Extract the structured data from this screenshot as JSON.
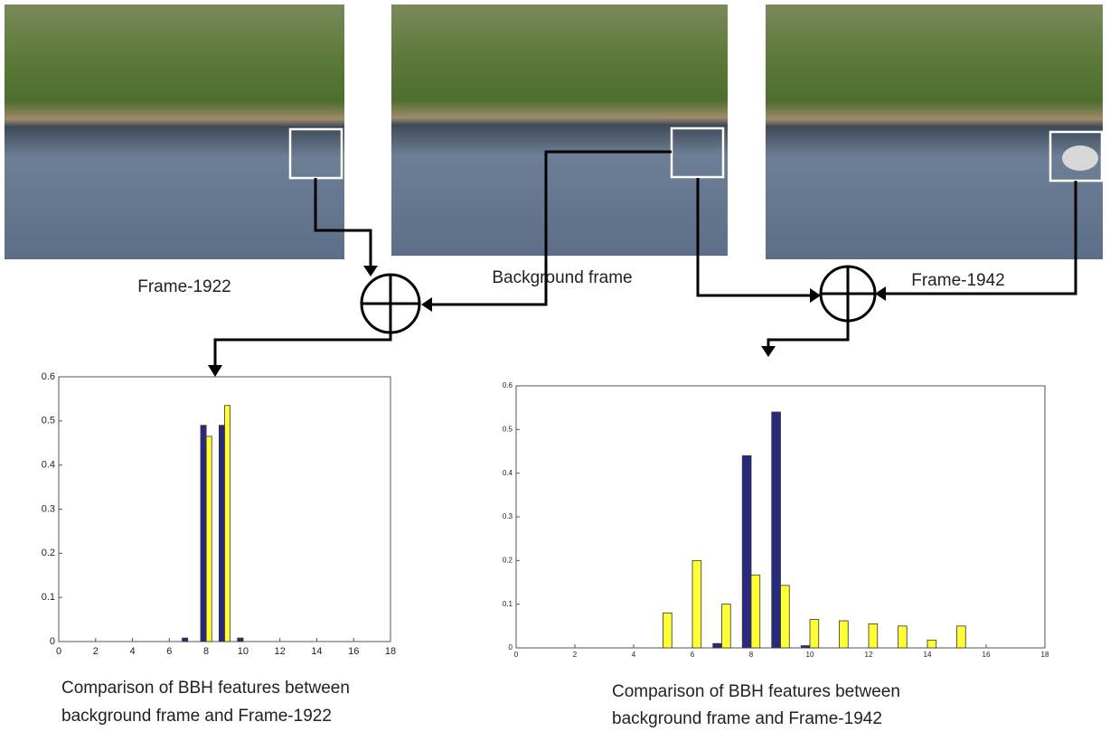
{
  "figure": {
    "frame_labels": [
      "Frame-1922",
      "Background frame",
      "Frame-1942"
    ]
  },
  "chart_data": [
    {
      "type": "bar",
      "caption": [
        "Comparison of BBH features between",
        "background frame and Frame-1922"
      ],
      "x": [
        7,
        8,
        9,
        10
      ],
      "series": [
        {
          "color": "#2a2a7c",
          "values": [
            0.008,
            0.49,
            0.49,
            0.008
          ]
        },
        {
          "color": "#ffff33",
          "values": [
            null,
            0.465,
            0.535,
            null
          ]
        }
      ],
      "xlim": [
        0,
        18
      ],
      "xticks": [
        0,
        2,
        4,
        6,
        8,
        10,
        12,
        14,
        16,
        18
      ],
      "ylim": [
        0,
        0.6
      ],
      "yticks": [
        0,
        0.1,
        0.2,
        0.3,
        0.4,
        0.5,
        0.6
      ]
    },
    {
      "type": "bar",
      "caption": [
        "Comparison of BBH features between",
        "background frame and Frame-1942"
      ],
      "x": [
        5,
        6,
        7,
        8,
        9,
        10,
        11,
        12,
        13,
        14,
        15
      ],
      "series": [
        {
          "color": "#2a2a7c",
          "values": [
            null,
            null,
            0.01,
            0.44,
            0.54,
            0.005,
            null,
            null,
            null,
            null,
            null
          ]
        },
        {
          "color": "#ffff33",
          "values": [
            0.08,
            0.2,
            0.1,
            0.167,
            0.143,
            0.065,
            0.062,
            0.055,
            0.05,
            0.018,
            0.05
          ]
        }
      ],
      "xlim": [
        0,
        18
      ],
      "xticks": [
        0,
        2,
        4,
        6,
        8,
        10,
        12,
        14,
        16,
        18
      ],
      "ylim": [
        0,
        0.6
      ],
      "yticks": [
        0,
        0.1,
        0.2,
        0.3,
        0.4,
        0.5,
        0.6
      ]
    }
  ]
}
